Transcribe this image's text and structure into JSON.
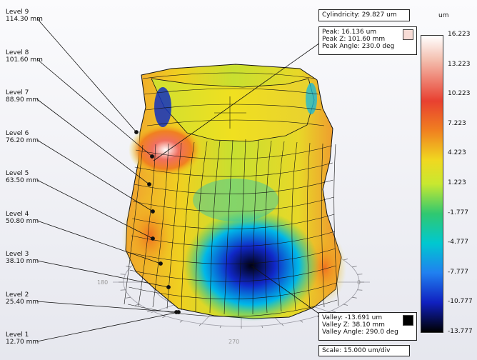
{
  "levels": [
    {
      "name": "Level 9",
      "height": "114.30 mm"
    },
    {
      "name": "Level 8",
      "height": "101.60 mm"
    },
    {
      "name": "Level 7",
      "height": "88.90 mm"
    },
    {
      "name": "Level 6",
      "height": "76.20 mm"
    },
    {
      "name": "Level 5",
      "height": "63.50 mm"
    },
    {
      "name": "Level 4",
      "height": "50.80 mm"
    },
    {
      "name": "Level 3",
      "height": "38.10 mm"
    },
    {
      "name": "Level 2",
      "height": "25.40 mm"
    },
    {
      "name": "Level 1",
      "height": "12.70 mm"
    }
  ],
  "cylindricity": "Cylindricity: 29.827 um",
  "peak": {
    "value": "Peak: 16.136 um",
    "z": "Peak Z: 101.60 mm",
    "angle": "Peak Angle: 230.0 deg",
    "swatch_color": "#f8dcd6"
  },
  "valley": {
    "value": "Valley: -13.691 um",
    "z": "Valley Z: 38.10 mm",
    "angle": "Valley Angle: 290.0 deg",
    "swatch_color": "#000000"
  },
  "scale": "Scale: 15.000 um/div",
  "colorbar": {
    "unit": "um",
    "ticks": [
      "16.223",
      "13.223",
      "10.223",
      "7.223",
      "4.223",
      "1.223",
      "-1.777",
      "-4.777",
      "-7.777",
      "-10.777",
      "-13.777"
    ]
  },
  "polar_labels": {
    "a180": "180",
    "a0": "0",
    "a270": "270"
  }
}
